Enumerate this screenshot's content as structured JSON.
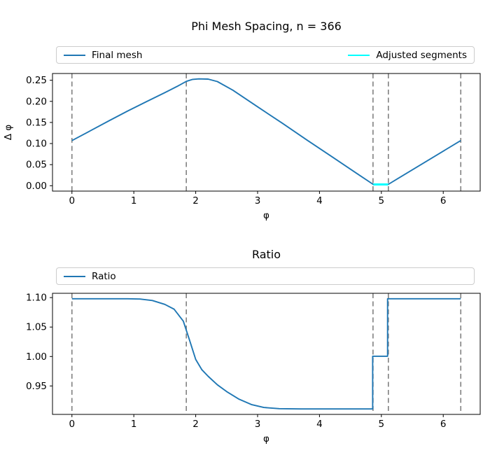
{
  "figure": {
    "background": "#ffffff",
    "spine_color": "#000000",
    "text_color": "#000000"
  },
  "chart_data": [
    {
      "type": "line",
      "title": "Phi Mesh Spacing, n = 366",
      "xlabel": "φ",
      "ylabel": "Δ φ",
      "xlim": [
        -0.314,
        6.597
      ],
      "ylim": [
        -0.0127,
        0.266
      ],
      "grid": false,
      "legend_position": "above-axes, expanded full width",
      "xticks": {
        "values": [
          0,
          1,
          2,
          3,
          4,
          5,
          6
        ],
        "labels": [
          "0",
          "1",
          "2",
          "3",
          "4",
          "5",
          "6"
        ]
      },
      "yticks": {
        "values": [
          0.0,
          0.05,
          0.1,
          0.15,
          0.2,
          0.25
        ],
        "labels": [
          "0.00",
          "0.05",
          "0.10",
          "0.15",
          "0.20",
          "0.25"
        ]
      },
      "vlines": {
        "color": "#808080",
        "style": "dashed",
        "positions": [
          0,
          1.848,
          4.865,
          5.113,
          6.283
        ]
      },
      "legend": [
        {
          "label": "Final mesh",
          "color": "#1f77b4"
        },
        {
          "label": "Adjusted segments",
          "color": "#00ffff"
        }
      ],
      "series": [
        {
          "name": "Final mesh",
          "color": "#1f77b4",
          "width": 1.9,
          "x": [
            0,
            0.3,
            0.6,
            0.9,
            1.2,
            1.5,
            1.7,
            1.85,
            1.95,
            2.05,
            2.2,
            2.35,
            2.6,
            3.0,
            3.4,
            3.8,
            4.2,
            4.6,
            4.87,
            5.11,
            5.4,
            5.7,
            6.0,
            6.283
          ],
          "y": [
            0.107,
            0.1305,
            0.154,
            0.177,
            0.199,
            0.2205,
            0.2355,
            0.2475,
            0.252,
            0.2533,
            0.2528,
            0.247,
            0.2265,
            0.187,
            0.148,
            0.108,
            0.069,
            0.0295,
            0.003,
            0.003,
            0.029,
            0.0555,
            0.082,
            0.107
          ]
        },
        {
          "name": "Adjusted segments",
          "color": "#00ffff",
          "width": 3,
          "x": [
            4.87,
            5.11
          ],
          "y": [
            0.003,
            0.003
          ]
        }
      ]
    },
    {
      "type": "line",
      "title": "Ratio",
      "xlabel": "φ",
      "ylabel": "",
      "xlim": [
        -0.314,
        6.597
      ],
      "ylim": [
        0.9017,
        1.1073
      ],
      "grid": false,
      "legend_position": "above-axes, expanded full width",
      "xticks": {
        "values": [
          0,
          1,
          2,
          3,
          4,
          5,
          6
        ],
        "labels": [
          "0",
          "1",
          "2",
          "3",
          "4",
          "5",
          "6"
        ]
      },
      "yticks": {
        "values": [
          0.95,
          1.0,
          1.05,
          1.1
        ],
        "labels": [
          "0.95",
          "1.00",
          "1.05",
          "1.10"
        ]
      },
      "vlines": {
        "color": "#808080",
        "style": "dashed",
        "positions": [
          0,
          1.848,
          4.865,
          5.113,
          6.283
        ]
      },
      "legend": [
        {
          "label": "Ratio",
          "color": "#1f77b4"
        }
      ],
      "series": [
        {
          "name": "Ratio",
          "color": "#1f77b4",
          "width": 1.9,
          "x": [
            0,
            0.5,
            0.9,
            1.1,
            1.3,
            1.5,
            1.65,
            1.8,
            1.9,
            2.0,
            2.1,
            2.2,
            2.35,
            2.5,
            2.7,
            2.9,
            3.1,
            3.35,
            3.7,
            4.1,
            4.5,
            4.86,
            4.86,
            5.1,
            5.1,
            5.5,
            6.0,
            6.283
          ],
          "y": [
            1.098,
            1.098,
            1.098,
            1.0975,
            1.095,
            1.0885,
            1.0805,
            1.06,
            1.028,
            0.995,
            0.9775,
            0.9665,
            0.952,
            0.9405,
            0.9275,
            0.9185,
            0.9135,
            0.9115,
            0.911,
            0.911,
            0.911,
            0.911,
            1.0005,
            1.0005,
            1.098,
            1.098,
            1.098,
            1.098
          ]
        }
      ]
    }
  ]
}
